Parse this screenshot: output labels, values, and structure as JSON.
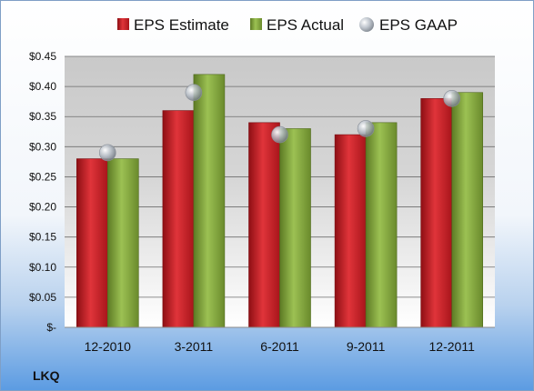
{
  "ticker": "LKQ",
  "chart_data": {
    "type": "bar",
    "categories": [
      "12-2010",
      "3-2011",
      "6-2011",
      "9-2011",
      "12-2011"
    ],
    "series": [
      {
        "name": "EPS Estimate",
        "kind": "bar",
        "color": "#cc1f26",
        "values": [
          0.28,
          0.36,
          0.34,
          0.32,
          0.38
        ]
      },
      {
        "name": "EPS Actual",
        "kind": "bar",
        "color": "#7fa23a",
        "values": [
          0.28,
          0.42,
          0.33,
          0.34,
          0.39
        ]
      },
      {
        "name": "EPS GAAP",
        "kind": "marker",
        "color": "#b8bfc8",
        "values": [
          0.29,
          0.39,
          0.32,
          0.33,
          0.38
        ]
      }
    ],
    "ylim": [
      0,
      0.45
    ],
    "y_ticks": [
      {
        "value": 0,
        "label": "$-"
      },
      {
        "value": 0.05,
        "label": "$0.05"
      },
      {
        "value": 0.1,
        "label": "$0.10"
      },
      {
        "value": 0.15,
        "label": "$0.15"
      },
      {
        "value": 0.2,
        "label": "$0.20"
      },
      {
        "value": 0.25,
        "label": "$0.25"
      },
      {
        "value": 0.3,
        "label": "$0.30"
      },
      {
        "value": 0.35,
        "label": "$0.35"
      },
      {
        "value": 0.4,
        "label": "$0.40"
      },
      {
        "value": 0.45,
        "label": "$0.45"
      }
    ],
    "grid": true,
    "legend_position": "top"
  }
}
